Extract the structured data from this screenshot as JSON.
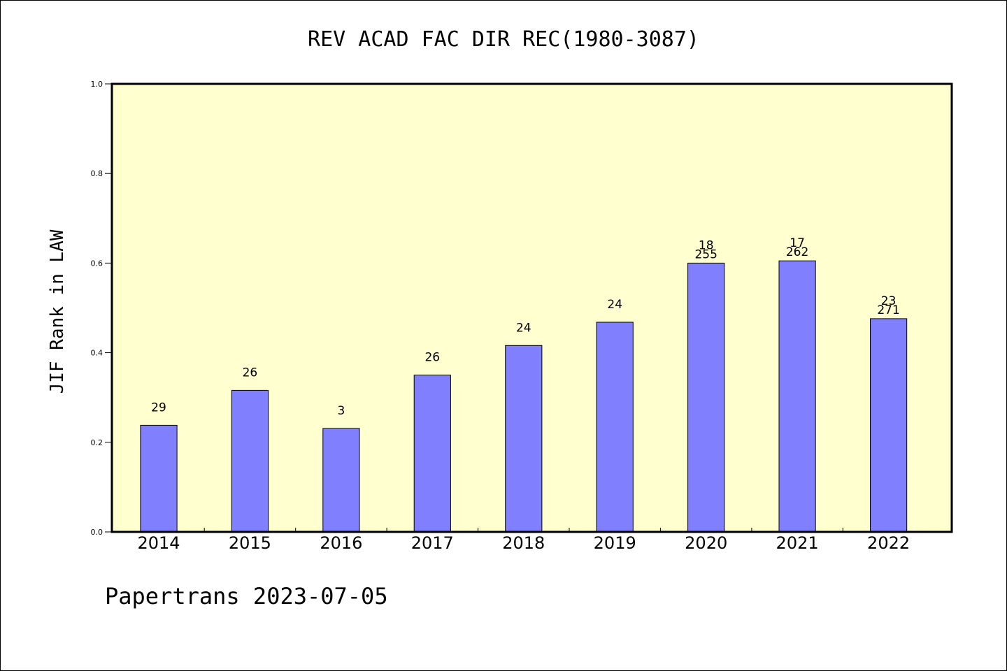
{
  "chart_data": {
    "type": "bar",
    "title": "REV ACAD FAC DIR REC(1980-3087)",
    "ylabel": "JIF Rank in LAW",
    "xlabel": "",
    "ylim": [
      0,
      1.0
    ],
    "yticks": [
      "0.0",
      "0.2",
      "0.4",
      "0.6",
      "0.8",
      "1.0"
    ],
    "categories": [
      "2014",
      "2015",
      "2016",
      "2017",
      "2018",
      "2019",
      "2020",
      "2021",
      "2022"
    ],
    "values": [
      0.238,
      0.316,
      0.231,
      0.35,
      0.416,
      0.468,
      0.6,
      0.605,
      0.476
    ],
    "labels_top": [
      "",
      "",
      "",
      "",
      "",
      "",
      "18",
      "17",
      "23"
    ],
    "labels": [
      "29",
      "26",
      "3",
      "26",
      "24",
      "24",
      "255",
      "262",
      "271"
    ],
    "grid": false,
    "bar_color": "#8080ff",
    "plot_background": "#ffffd0"
  },
  "footer": "Papertrans 2023-07-05"
}
